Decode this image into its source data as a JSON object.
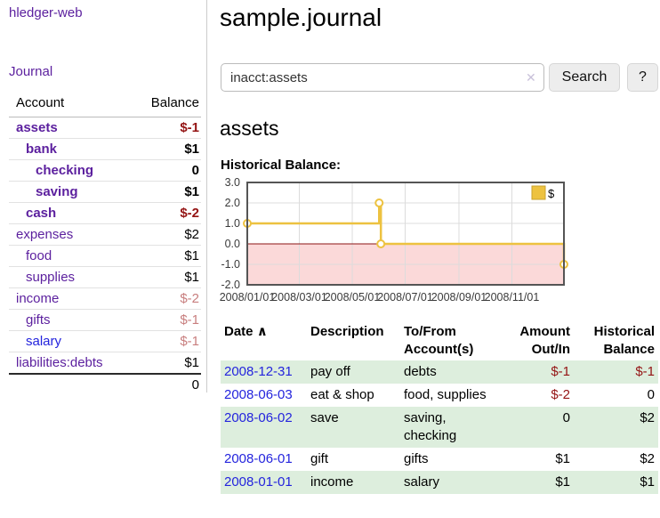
{
  "app": {
    "brand": "hledger-web",
    "nav_journal": "Journal"
  },
  "sidebar": {
    "header": {
      "account": "Account",
      "balance": "Balance"
    },
    "accounts": [
      {
        "name": "assets",
        "depth": 0,
        "bold": true,
        "balance": "$-1",
        "balance_style": "neg-strong"
      },
      {
        "name": "bank",
        "depth": 1,
        "bold": true,
        "balance": "$1"
      },
      {
        "name": "checking",
        "depth": 2,
        "bold": true,
        "balance": "0"
      },
      {
        "name": "saving",
        "depth": 2,
        "bold": true,
        "balance": "$1"
      },
      {
        "name": "cash",
        "depth": 1,
        "bold": true,
        "balance": "$-2",
        "balance_style": "neg-strong"
      },
      {
        "name": "expenses",
        "depth": 0,
        "bold": false,
        "balance": "$2"
      },
      {
        "name": "food",
        "depth": 1,
        "bold": false,
        "balance": "$1"
      },
      {
        "name": "supplies",
        "depth": 1,
        "bold": false,
        "balance": "$1"
      },
      {
        "name": "income",
        "depth": 0,
        "bold": false,
        "balance": "$-2",
        "balance_style": "neg-muted"
      },
      {
        "name": "gifts",
        "depth": 1,
        "bold": false,
        "balance": "$-1",
        "balance_style": "neg-muted"
      },
      {
        "name": "salary",
        "depth": 1,
        "bold": false,
        "balance": "$-1",
        "balance_style": "neg-muted",
        "link_color": "blue"
      },
      {
        "name": "liabilities:debts",
        "depth": 0,
        "bold": false,
        "balance": "$1"
      }
    ],
    "total": "0"
  },
  "header": {
    "title": "sample.journal"
  },
  "search": {
    "value": "inacct:assets",
    "clear_icon": "✕",
    "button": "Search",
    "help_button": "?"
  },
  "main": {
    "heading": "assets",
    "chart_label": "Historical Balance:"
  },
  "chart_data": {
    "type": "line",
    "step": true,
    "title": "Historical Balance of assets",
    "legend": [
      {
        "name": "$",
        "color": "#edc240"
      }
    ],
    "legend_position": "top-right",
    "grid": true,
    "xrange": [
      "2008-01-01",
      "2008-12-31"
    ],
    "ylim": [
      -2,
      3
    ],
    "yticks": [
      3,
      2,
      1,
      0,
      -1,
      -2
    ],
    "ytick_labels": [
      "3.0",
      "2.0",
      "1.0",
      "0.0",
      "-1.0",
      "-2.0"
    ],
    "xtick_labels": [
      "2008/01/01",
      "2008/03/01",
      "2008/05/01",
      "2008/07/01",
      "2008/09/01",
      "2008/11/01"
    ],
    "series": [
      {
        "name": "$",
        "color": "#edc240",
        "points": [
          {
            "x": "2008-01-01",
            "y": 1
          },
          {
            "x": "2008-06-01",
            "y": 2
          },
          {
            "x": "2008-06-02",
            "y": 2
          },
          {
            "x": "2008-06-03",
            "y": 0
          },
          {
            "x": "2008-12-31",
            "y": -1
          }
        ]
      }
    ],
    "negative_region_color": "#fbd9d9",
    "zero_line_color": "#8b1414",
    "gridline_color": "#dcdcdc",
    "border_color": "#555555"
  },
  "table": {
    "headers": [
      "Date",
      "Description",
      "To/From Account(s)",
      "Amount Out/In",
      "Historical Balance"
    ],
    "sort_icon": "∧",
    "rows": [
      {
        "date": "2008-12-31",
        "description": "pay off",
        "accounts": "debts",
        "amount": "$-1",
        "amount_neg": true,
        "balance": "$-1",
        "balance_neg": true,
        "green": true
      },
      {
        "date": "2008-06-03",
        "description": "eat & shop",
        "accounts": "food, supplies",
        "amount": "$-2",
        "amount_neg": true,
        "balance": "0",
        "balance_neg": false,
        "green": false
      },
      {
        "date": "2008-06-02",
        "description": "save",
        "accounts": "saving, checking",
        "amount": "0",
        "amount_neg": false,
        "balance": "$2",
        "balance_neg": false,
        "green": true
      },
      {
        "date": "2008-06-01",
        "description": "gift",
        "accounts": "gifts",
        "amount": "$1",
        "amount_neg": false,
        "balance": "$2",
        "balance_neg": false,
        "green": false
      },
      {
        "date": "2008-01-01",
        "description": "income",
        "accounts": "salary",
        "amount": "$1",
        "amount_neg": false,
        "balance": "$1",
        "balance_neg": false,
        "green": true
      }
    ]
  }
}
